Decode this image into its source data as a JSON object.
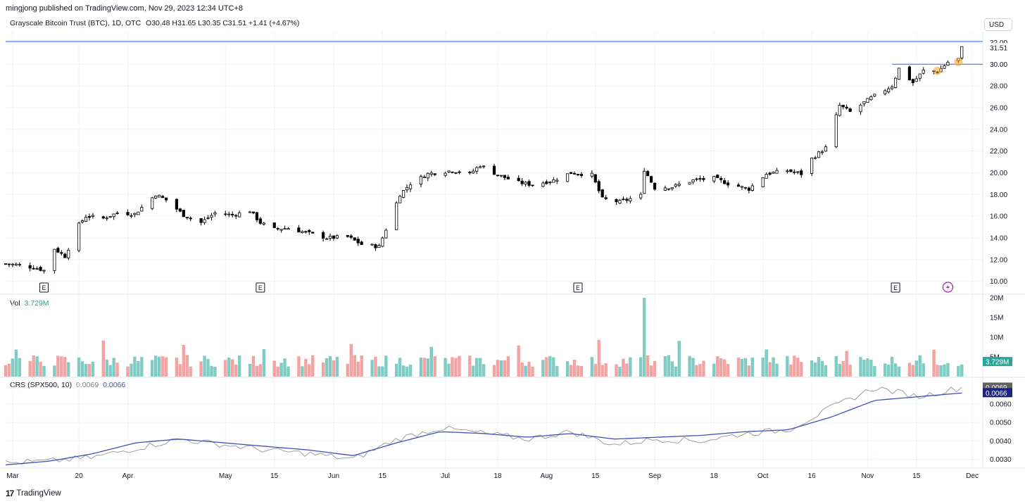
{
  "header": {
    "published": "mingjong published on TradingView.com, Nov 29, 2023 12:34 UTC+8",
    "symbol": "Grayscale Bitcoin Trust (BTC), 1D, OTC",
    "ohlc": "O30.48 H31.65 L30.35 C31.51 +1.41 (+4.67%)",
    "currency_button": "USD"
  },
  "indicators": {
    "volume": {
      "label": "Vol",
      "value": "3.729M",
      "last_badge": "3.729M"
    },
    "crs": {
      "label": "CRS (SPX500, 10)",
      "value1": "0.0069",
      "value2": "0.0066",
      "badge1": "0.0069",
      "badge2": "0.0066"
    }
  },
  "footer": {
    "brand": "TradingView",
    "logo": "17"
  },
  "colors": {
    "up": "#26a69a",
    "down": "#ef5350",
    "vol_up": "#80cbc4",
    "vol_down": "#f3a3a1",
    "candle": "#000000",
    "horizontal_line": "#2962ff",
    "crs_line": "#9e9e9e",
    "crs_ma": "#3f51b5",
    "highlight": "#f5a623",
    "earnings_icon": "e-marker-icon",
    "dividend_icon": "lightning-icon"
  },
  "chart_data": [
    {
      "type": "candlestick",
      "title": "Grayscale Bitcoin Trust (BTC), 1D, OTC",
      "ylim": [
        9.0,
        33.0
      ],
      "y_ticks": [
        "10.00",
        "12.00",
        "14.00",
        "16.00",
        "18.00",
        "20.00",
        "22.00",
        "24.00",
        "26.00",
        "28.00",
        "30.00",
        "32.00"
      ],
      "last_price_label": "31.51",
      "x_ticks": [
        "Mar",
        "20",
        "Apr",
        "May",
        "15",
        "Jun",
        "15",
        "Jul",
        "18",
        "Aug",
        "15",
        "Sep",
        "18",
        "Oct",
        "16",
        "Nov",
        "15",
        "Dec"
      ],
      "x_range": [
        "2023-02-27",
        "2023-12-04"
      ],
      "horizontal_lines": [
        32.1,
        30.0
      ],
      "earnings_markers": [
        "E",
        "E",
        "E",
        "E"
      ],
      "earnings_dates": [
        "2023-03-10",
        "2023-05-11",
        "2023-08-10",
        "2023-11-09"
      ],
      "dividend_marker_date": "2023-11-24",
      "highlight_dates": [
        "2023-11-21",
        "2023-11-27"
      ],
      "series_close": [
        [
          "2023-02-27",
          11.6
        ],
        [
          "2023-03-03",
          11.5
        ],
        [
          "2023-03-08",
          11.2
        ],
        [
          "2023-03-10",
          11.0
        ],
        [
          "2023-03-13",
          13.0
        ],
        [
          "2023-03-16",
          12.3
        ],
        [
          "2023-03-20",
          15.2
        ],
        [
          "2023-03-22",
          16.0
        ],
        [
          "2023-03-27",
          15.8
        ],
        [
          "2023-03-31",
          16.3
        ],
        [
          "2023-04-05",
          16.2
        ],
        [
          "2023-04-11",
          18.0
        ],
        [
          "2023-04-14",
          17.5
        ],
        [
          "2023-04-19",
          16.1
        ],
        [
          "2023-04-24",
          15.4
        ],
        [
          "2023-04-28",
          16.3
        ],
        [
          "2023-05-03",
          16.1
        ],
        [
          "2023-05-08",
          16.5
        ],
        [
          "2023-05-11",
          15.4
        ],
        [
          "2023-05-15",
          14.8
        ],
        [
          "2023-05-19",
          14.9
        ],
        [
          "2023-05-24",
          14.5
        ],
        [
          "2023-05-30",
          14.0
        ],
        [
          "2023-06-05",
          14.1
        ],
        [
          "2023-06-09",
          13.4
        ],
        [
          "2023-06-14",
          13.2
        ],
        [
          "2023-06-16",
          14.8
        ],
        [
          "2023-06-20",
          18.0
        ],
        [
          "2023-06-23",
          19.0
        ],
        [
          "2023-06-28",
          19.9
        ],
        [
          "2023-07-05",
          20.2
        ],
        [
          "2023-07-10",
          19.9
        ],
        [
          "2023-07-13",
          20.7
        ],
        [
          "2023-07-18",
          19.8
        ],
        [
          "2023-07-24",
          19.1
        ],
        [
          "2023-07-28",
          18.9
        ],
        [
          "2023-08-03",
          19.3
        ],
        [
          "2023-08-08",
          20.0
        ],
        [
          "2023-08-14",
          19.8
        ],
        [
          "2023-08-17",
          17.6
        ],
        [
          "2023-08-22",
          17.3
        ],
        [
          "2023-08-28",
          17.9
        ],
        [
          "2023-08-29",
          20.3
        ],
        [
          "2023-09-01",
          18.6
        ],
        [
          "2023-09-06",
          18.7
        ],
        [
          "2023-09-12",
          19.3
        ],
        [
          "2023-09-18",
          19.5
        ],
        [
          "2023-09-22",
          19.0
        ],
        [
          "2023-09-28",
          18.5
        ],
        [
          "2023-10-03",
          19.9
        ],
        [
          "2023-10-09",
          20.2
        ],
        [
          "2023-10-13",
          19.9
        ],
        [
          "2023-10-16",
          21.3
        ],
        [
          "2023-10-20",
          22.3
        ],
        [
          "2023-10-24",
          26.2
        ],
        [
          "2023-10-27",
          25.6
        ],
        [
          "2023-11-02",
          26.9
        ],
        [
          "2023-11-08",
          28.0
        ],
        [
          "2023-11-10",
          29.6
        ],
        [
          "2023-11-14",
          28.3
        ],
        [
          "2023-11-17",
          29.4
        ],
        [
          "2023-11-21",
          29.3
        ],
        [
          "2023-11-24",
          30.2
        ],
        [
          "2023-11-27",
          30.5
        ],
        [
          "2023-11-28",
          31.51
        ]
      ]
    },
    {
      "type": "bar",
      "title": "Vol",
      "ylim": [
        0,
        20000000
      ],
      "y_ticks": [
        "20M",
        "15M",
        "10M",
        "5M"
      ],
      "max_bar_date": "2023-08-29",
      "max_bar_value": 20000000
    },
    {
      "type": "line",
      "title": "CRS (SPX500, 10)",
      "ylim": [
        0.0026,
        0.0073
      ],
      "y_ticks": [
        "0.0030",
        "0.0040",
        "0.0050",
        "0.0060"
      ],
      "series": [
        {
          "name": "CRS",
          "values_sampled": [
            0.0028,
            0.0029,
            0.0031,
            0.0036,
            0.0041,
            0.0038,
            0.0035,
            0.0033,
            0.003,
            0.0041,
            0.0047,
            0.0044,
            0.0041,
            0.0045,
            0.0038,
            0.0041,
            0.004,
            0.0044,
            0.0046,
            0.0058,
            0.0069,
            0.0064,
            0.0069
          ]
        },
        {
          "name": "MA",
          "values_sampled": [
            0.0027,
            0.0029,
            0.0033,
            0.0039,
            0.0041,
            0.0039,
            0.0037,
            0.0035,
            0.0032,
            0.0039,
            0.0045,
            0.0044,
            0.0042,
            0.0044,
            0.0041,
            0.0042,
            0.0043,
            0.0045,
            0.0046,
            0.0053,
            0.0062,
            0.0064,
            0.0066
          ]
        }
      ]
    }
  ]
}
